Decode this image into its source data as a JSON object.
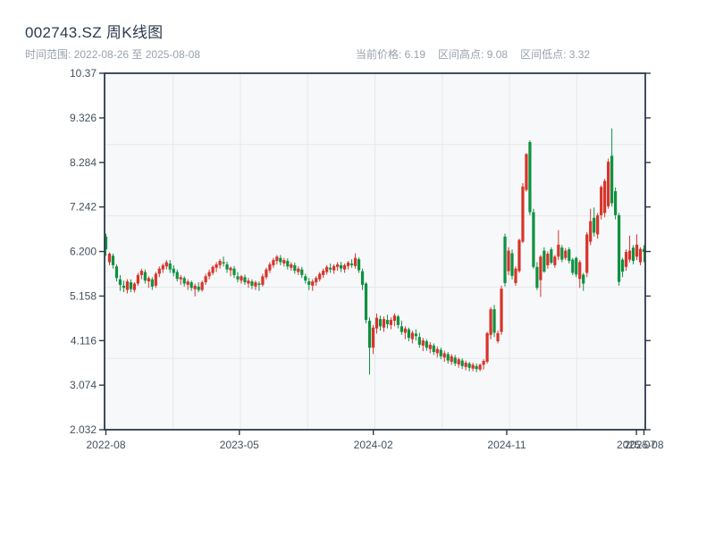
{
  "header": {
    "title": "002743.SZ 周K线图",
    "date_range_label": "时间范围: 2022-08-26 至 2025-08-08",
    "stats": [
      {
        "label": "当前价格:",
        "value": "6.19"
      },
      {
        "label": "区间高点:",
        "value": "9.08"
      },
      {
        "label": "区间低点:",
        "value": "3.32"
      }
    ]
  },
  "chart_data": {
    "type": "candlestick",
    "symbol": "002743.SZ",
    "period": "weekly",
    "title": "002743.SZ 周K线图",
    "start_date": "2022-08-26",
    "end_date": "2025-08-08",
    "current_price": 6.19,
    "range_high": 9.08,
    "range_low": 3.32,
    "ylim": [
      2.032,
      10.37
    ],
    "y_tick_labels": [
      "10.37",
      "9.326",
      "8.284",
      "7.242",
      "6.200",
      "5.158",
      "4.116",
      "3.074",
      "2.032"
    ],
    "x_ticks": [
      {
        "label": "2022-08",
        "f": 0.0
      },
      {
        "label": "2023-05",
        "f": 0.248
      },
      {
        "label": "2024-02",
        "f": 0.497
      },
      {
        "label": "2024-11",
        "f": 0.745
      },
      {
        "label": "2025-07",
        "f": 0.986
      },
      {
        "label": "2025-08",
        "f": 1.0
      }
    ],
    "grid": {
      "h_fractions": [
        0.2,
        0.4,
        0.6,
        0.8
      ],
      "v_fractions": [
        0.125,
        0.25,
        0.375,
        0.5,
        0.625,
        0.75,
        0.875
      ]
    },
    "colors": {
      "up": "#d7342a",
      "down": "#0f9140",
      "spine": "#2c3a4a",
      "grid": "#e5e7ea",
      "plot_bg": "#f7f8fa"
    },
    "candles_format": [
      "open",
      "high",
      "low",
      "close"
    ],
    "candles": [
      [
        6.55,
        6.62,
        6.1,
        6.25
      ],
      [
        5.95,
        6.18,
        5.88,
        6.15
      ],
      [
        6.1,
        6.15,
        5.8,
        5.88
      ],
      [
        5.85,
        5.9,
        5.5,
        5.58
      ],
      [
        5.55,
        5.65,
        5.28,
        5.42
      ],
      [
        5.4,
        5.52,
        5.25,
        5.35
      ],
      [
        5.3,
        5.55,
        5.22,
        5.5
      ],
      [
        5.48,
        5.55,
        5.25,
        5.32
      ],
      [
        5.3,
        5.48,
        5.24,
        5.45
      ],
      [
        5.45,
        5.7,
        5.4,
        5.65
      ],
      [
        5.65,
        5.8,
        5.55,
        5.75
      ],
      [
        5.72,
        5.78,
        5.45,
        5.52
      ],
      [
        5.5,
        5.62,
        5.35,
        5.58
      ],
      [
        5.55,
        5.6,
        5.3,
        5.38
      ],
      [
        5.4,
        5.72,
        5.35,
        5.68
      ],
      [
        5.68,
        5.85,
        5.6,
        5.8
      ],
      [
        5.78,
        5.92,
        5.7,
        5.88
      ],
      [
        5.85,
        6.0,
        5.78,
        5.95
      ],
      [
        5.92,
        6.0,
        5.7,
        5.78
      ],
      [
        5.8,
        5.88,
        5.62,
        5.7
      ],
      [
        5.72,
        5.78,
        5.5,
        5.56
      ],
      [
        5.55,
        5.65,
        5.42,
        5.6
      ],
      [
        5.58,
        5.62,
        5.38,
        5.45
      ],
      [
        5.42,
        5.55,
        5.3,
        5.5
      ],
      [
        5.48,
        5.52,
        5.28,
        5.35
      ],
      [
        5.32,
        5.45,
        5.15,
        5.4
      ],
      [
        5.38,
        5.48,
        5.25,
        5.3
      ],
      [
        5.3,
        5.52,
        5.26,
        5.48
      ],
      [
        5.48,
        5.68,
        5.42,
        5.62
      ],
      [
        5.62,
        5.78,
        5.55,
        5.72
      ],
      [
        5.7,
        5.88,
        5.65,
        5.84
      ],
      [
        5.82,
        5.95,
        5.72,
        5.9
      ],
      [
        5.88,
        6.02,
        5.8,
        5.98
      ],
      [
        5.95,
        6.08,
        5.85,
        5.92
      ],
      [
        5.9,
        5.96,
        5.7,
        5.78
      ],
      [
        5.76,
        5.85,
        5.62,
        5.82
      ],
      [
        5.8,
        5.86,
        5.58,
        5.65
      ],
      [
        5.62,
        5.72,
        5.48,
        5.55
      ],
      [
        5.52,
        5.65,
        5.45,
        5.62
      ],
      [
        5.6,
        5.66,
        5.42,
        5.48
      ],
      [
        5.45,
        5.58,
        5.35,
        5.52
      ],
      [
        5.5,
        5.55,
        5.32,
        5.4
      ],
      [
        5.38,
        5.52,
        5.3,
        5.48
      ],
      [
        5.45,
        5.5,
        5.28,
        5.42
      ],
      [
        5.42,
        5.68,
        5.38,
        5.62
      ],
      [
        5.6,
        5.82,
        5.55,
        5.78
      ],
      [
        5.76,
        5.95,
        5.7,
        5.9
      ],
      [
        5.88,
        6.05,
        5.82,
        6.0
      ],
      [
        5.98,
        6.12,
        5.9,
        6.08
      ],
      [
        6.05,
        6.12,
        5.88,
        5.95
      ],
      [
        5.92,
        6.05,
        5.85,
        6.0
      ],
      [
        5.98,
        6.04,
        5.78,
        5.85
      ],
      [
        5.82,
        5.95,
        5.75,
        5.9
      ],
      [
        5.88,
        5.94,
        5.68,
        5.75
      ],
      [
        5.72,
        5.85,
        5.65,
        5.8
      ],
      [
        5.78,
        5.84,
        5.58,
        5.65
      ],
      [
        5.62,
        5.68,
        5.45,
        5.52
      ],
      [
        5.5,
        5.58,
        5.3,
        5.42
      ],
      [
        5.4,
        5.55,
        5.28,
        5.5
      ],
      [
        5.48,
        5.62,
        5.4,
        5.58
      ],
      [
        5.55,
        5.72,
        5.5,
        5.68
      ],
      [
        5.65,
        5.8,
        5.58,
        5.75
      ],
      [
        5.72,
        5.88,
        5.66,
        5.84
      ],
      [
        5.82,
        5.92,
        5.7,
        5.78
      ],
      [
        5.76,
        5.9,
        5.68,
        5.86
      ],
      [
        5.84,
        5.95,
        5.75,
        5.9
      ],
      [
        5.88,
        5.96,
        5.72,
        5.8
      ],
      [
        5.78,
        5.92,
        5.7,
        5.88
      ],
      [
        5.86,
        5.98,
        5.78,
        5.94
      ],
      [
        5.92,
        6.02,
        5.82,
        5.88
      ],
      [
        5.86,
        6.16,
        5.8,
        6.05
      ],
      [
        6.02,
        6.06,
        5.7,
        5.76
      ],
      [
        5.74,
        5.8,
        5.3,
        5.42
      ],
      [
        5.45,
        5.48,
        4.52,
        4.6
      ],
      [
        4.58,
        4.66,
        3.32,
        3.95
      ],
      [
        3.95,
        4.48,
        3.8,
        4.42
      ],
      [
        4.4,
        4.75,
        4.28,
        4.65
      ],
      [
        4.62,
        4.7,
        4.35,
        4.45
      ],
      [
        4.42,
        4.68,
        4.32,
        4.62
      ],
      [
        4.6,
        4.72,
        4.4,
        4.5
      ],
      [
        4.48,
        4.66,
        4.38,
        4.6
      ],
      [
        4.58,
        4.75,
        4.45,
        4.7
      ],
      [
        4.68,
        4.72,
        4.4,
        4.48
      ],
      [
        4.45,
        4.58,
        4.25,
        4.32
      ],
      [
        4.3,
        4.45,
        4.15,
        4.4
      ],
      [
        4.38,
        4.42,
        4.1,
        4.18
      ],
      [
        4.15,
        4.35,
        4.05,
        4.3
      ],
      [
        4.28,
        4.38,
        4.12,
        4.22
      ],
      [
        4.2,
        4.3,
        3.95,
        4.02
      ],
      [
        4.0,
        4.18,
        3.87,
        4.12
      ],
      [
        4.1,
        4.15,
        3.88,
        3.95
      ],
      [
        3.92,
        4.08,
        3.82,
        4.02
      ],
      [
        4.0,
        4.05,
        3.78,
        3.85
      ],
      [
        3.82,
        3.98,
        3.72,
        3.92
      ],
      [
        3.9,
        3.95,
        3.68,
        3.75
      ],
      [
        3.72,
        3.88,
        3.62,
        3.82
      ],
      [
        3.8,
        3.85,
        3.58,
        3.65
      ],
      [
        3.62,
        3.8,
        3.55,
        3.75
      ],
      [
        3.72,
        3.78,
        3.52,
        3.58
      ],
      [
        3.56,
        3.72,
        3.48,
        3.68
      ],
      [
        3.65,
        3.7,
        3.45,
        3.52
      ],
      [
        3.5,
        3.65,
        3.42,
        3.6
      ],
      [
        3.58,
        3.62,
        3.4,
        3.48
      ],
      [
        3.46,
        3.6,
        3.4,
        3.55
      ],
      [
        3.52,
        3.58,
        3.38,
        3.45
      ],
      [
        3.44,
        3.58,
        3.4,
        3.55
      ],
      [
        3.55,
        3.68,
        3.44,
        3.64
      ],
      [
        3.62,
        4.32,
        3.58,
        4.29
      ],
      [
        4.25,
        4.9,
        4.15,
        4.85
      ],
      [
        4.85,
        4.95,
        4.2,
        4.3
      ],
      [
        4.1,
        4.35,
        4.05,
        4.29
      ],
      [
        4.32,
        5.4,
        4.25,
        5.33
      ],
      [
        6.55,
        6.62,
        5.38,
        5.46
      ],
      [
        5.74,
        6.3,
        5.65,
        6.22
      ],
      [
        6.16,
        6.25,
        5.55,
        5.63
      ],
      [
        5.46,
        5.85,
        5.4,
        5.8
      ],
      [
        5.74,
        6.5,
        5.7,
        6.47
      ],
      [
        6.43,
        7.8,
        6.4,
        7.72
      ],
      [
        7.64,
        8.5,
        7.6,
        8.48
      ],
      [
        8.76,
        8.8,
        7.05,
        7.12
      ],
      [
        7.12,
        7.2,
        5.8,
        5.84
      ],
      [
        5.84,
        5.95,
        5.3,
        5.35
      ],
      [
        5.53,
        6.12,
        5.14,
        6.08
      ],
      [
        6.22,
        6.3,
        5.7,
        5.73
      ],
      [
        5.88,
        6.2,
        5.8,
        6.15
      ],
      [
        6.25,
        6.3,
        5.9,
        5.94
      ],
      [
        5.88,
        6.12,
        5.82,
        6.08
      ],
      [
        6.08,
        6.7,
        6.0,
        6.36
      ],
      [
        6.29,
        6.35,
        5.95,
        6.01
      ],
      [
        6.05,
        6.28,
        6.0,
        6.22
      ],
      [
        6.25,
        6.3,
        5.92,
        5.98
      ],
      [
        6.01,
        6.05,
        5.65,
        5.7
      ],
      [
        6.05,
        6.08,
        5.6,
        5.66
      ],
      [
        5.56,
        6.0,
        5.35,
        5.95
      ],
      [
        5.66,
        5.7,
        5.28,
        5.45
      ],
      [
        5.7,
        6.65,
        5.6,
        6.6
      ],
      [
        6.43,
        7.2,
        6.35,
        6.91
      ],
      [
        6.99,
        7.23,
        6.55,
        6.64
      ],
      [
        6.6,
        7.1,
        6.5,
        7.05
      ],
      [
        7.05,
        7.75,
        6.95,
        7.71
      ],
      [
        7.1,
        7.9,
        7.0,
        7.85
      ],
      [
        7.26,
        8.37,
        7.2,
        8.3
      ],
      [
        8.44,
        9.08,
        7.25,
        7.33
      ],
      [
        7.61,
        7.7,
        6.95,
        7.05
      ],
      [
        7.05,
        7.1,
        5.4,
        5.49
      ],
      [
        6.01,
        6.05,
        5.6,
        5.73
      ],
      [
        5.84,
        6.25,
        5.75,
        6.19
      ],
      [
        6.01,
        6.57,
        5.95,
        6.22
      ],
      [
        6.29,
        6.35,
        5.9,
        5.98
      ],
      [
        6.08,
        6.6,
        6.0,
        6.36
      ],
      [
        5.95,
        6.3,
        5.88,
        6.26
      ],
      [
        6.26,
        6.35,
        5.95,
        6.19
      ]
    ]
  }
}
